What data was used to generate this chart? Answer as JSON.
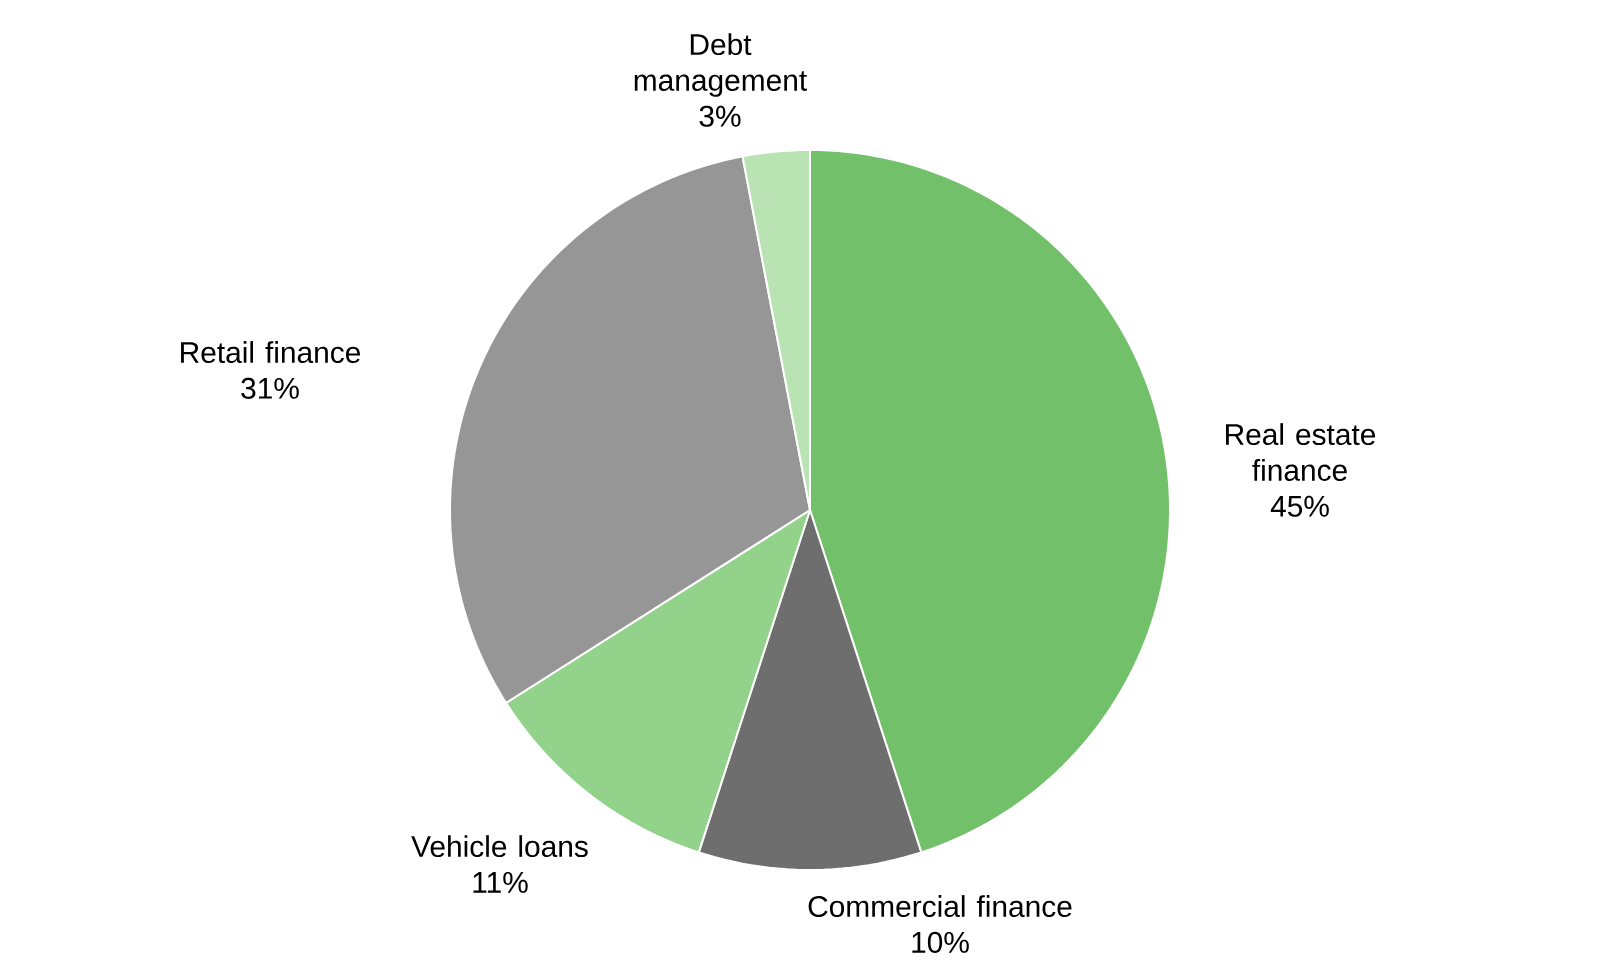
{
  "chart_data": {
    "type": "pie",
    "categories": [
      "Real estate finance",
      "Commercial finance",
      "Vehicle loans",
      "Retail finance",
      "Debt management"
    ],
    "values": [
      45,
      10,
      11,
      31,
      3
    ],
    "value_labels": [
      "45%",
      "10%",
      "11%",
      "31%",
      "3%"
    ],
    "colors": [
      "#73c06b",
      "#6e6e6e",
      "#92d28a",
      "#969696",
      "#b9e3b3"
    ]
  }
}
